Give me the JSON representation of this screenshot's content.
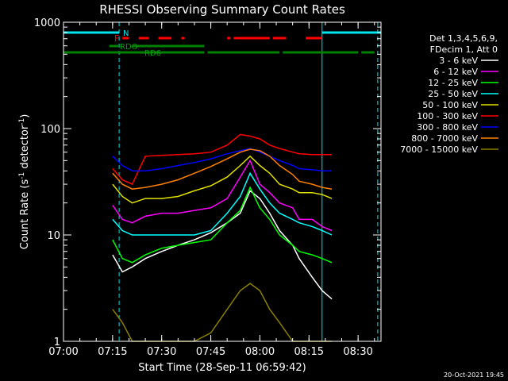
{
  "chart_data": {
    "type": "line",
    "title": "RHESSI Observing Summary Count Rates",
    "xlabel": "Start Time (28-Sep-11 06:59:42)",
    "ylabel_prefix": "Count Rate (s",
    "ylabel_sup1": "-1",
    "ylabel_mid": " detector",
    "ylabel_sup2": "-1",
    "ylabel_suffix": ")",
    "yscale": "log",
    "ylim": [
      1,
      1000
    ],
    "xlim": [
      "07:00",
      "08:37"
    ],
    "x_ticks": [
      "07:00",
      "07:15",
      "07:30",
      "07:45",
      "08:00",
      "08:15",
      "08:30"
    ],
    "y_ticks": [
      "1",
      "10",
      "100",
      "1000"
    ],
    "timestamp": "20-Oct-2021 19:45",
    "legend_header": [
      "Det 1,3,4,5,6,9,",
      "FDecim 1, Att 0"
    ],
    "flag_labels": {
      "night": "N",
      "flare": "F",
      "saa_rd0": "RDO",
      "saa_rd6": "RD6"
    },
    "night_times": [
      "07:00",
      "07:17",
      "08:19",
      "08:36"
    ],
    "flags": {
      "night": {
        "color": "#00e5ee",
        "intervals": [
          [
            "07:00",
            "07:17"
          ],
          [
            "08:19",
            "08:37"
          ]
        ]
      },
      "flare": {
        "color": "#ff0000",
        "intervals": [
          [
            "07:18",
            "07:20"
          ],
          [
            "07:23",
            "07:26"
          ],
          [
            "07:29",
            "07:33"
          ],
          [
            "07:36",
            "07:37"
          ],
          [
            "07:50",
            "07:51"
          ],
          [
            "07:52",
            "08:03"
          ],
          [
            "08:04",
            "08:08"
          ],
          [
            "08:14",
            "08:19"
          ]
        ]
      },
      "rd0": {
        "color": "#008000",
        "intervals": [
          [
            "07:14",
            "07:17"
          ],
          [
            "07:21",
            "07:43"
          ]
        ]
      },
      "rd6": {
        "color": "#008000",
        "intervals": [
          [
            "07:00",
            "07:43"
          ],
          [
            "07:44",
            "08:06"
          ],
          [
            "08:07",
            "08:30"
          ],
          [
            "08:31",
            "08:35"
          ]
        ]
      }
    },
    "series": [
      {
        "name": "3 - 6 keV",
        "color": "#ffffff",
        "x": [
          "07:15",
          "07:18",
          "07:21",
          "07:25",
          "07:30",
          "07:35",
          "07:40",
          "07:45",
          "07:50",
          "07:54",
          "07:57",
          "08:00",
          "08:03",
          "08:06",
          "08:10",
          "08:12",
          "08:16",
          "08:19",
          "08:22"
        ],
        "y": [
          6.5,
          4.5,
          5.0,
          6.0,
          7.0,
          8.0,
          9.0,
          10.5,
          13.0,
          16.0,
          26.0,
          22.0,
          16.0,
          11.0,
          8.0,
          6.0,
          4.0,
          3.0,
          2.5
        ]
      },
      {
        "name": "6 - 12 keV",
        "color": "#ff00ff",
        "x": [
          "07:15",
          "07:18",
          "07:21",
          "07:25",
          "07:30",
          "07:35",
          "07:40",
          "07:45",
          "07:50",
          "07:54",
          "07:57",
          "08:00",
          "08:03",
          "08:06",
          "08:10",
          "08:12",
          "08:16",
          "08:19",
          "08:22"
        ],
        "y": [
          19.0,
          14.0,
          13.0,
          15.0,
          16.0,
          16.0,
          17.0,
          18.0,
          22.0,
          35.0,
          50.0,
          30.0,
          25.0,
          20.0,
          18.0,
          14.0,
          14.0,
          12.0,
          11.0
        ]
      },
      {
        "name": "12 - 25 keV",
        "color": "#00ff00",
        "x": [
          "07:15",
          "07:18",
          "07:21",
          "07:25",
          "07:30",
          "07:35",
          "07:40",
          "07:45",
          "07:50",
          "07:54",
          "07:57",
          "08:00",
          "08:03",
          "08:06",
          "08:10",
          "08:12",
          "08:16",
          "08:19",
          "08:22"
        ],
        "y": [
          9.0,
          6.0,
          5.5,
          6.5,
          7.5,
          8.0,
          8.5,
          9.0,
          13.0,
          17.0,
          28.0,
          18.0,
          14.0,
          10.0,
          8.0,
          7.0,
          6.5,
          6.0,
          5.5
        ]
      },
      {
        "name": "25 - 50 keV",
        "color": "#00ffff",
        "x": [
          "07:15",
          "07:18",
          "07:21",
          "07:25",
          "07:30",
          "07:35",
          "07:40",
          "07:45",
          "07:50",
          "07:54",
          "07:57",
          "08:00",
          "08:03",
          "08:06",
          "08:10",
          "08:12",
          "08:16",
          "08:19",
          "08:22"
        ],
        "y": [
          14.0,
          11.0,
          10.0,
          10.0,
          10.0,
          10.0,
          10.0,
          11.0,
          16.0,
          23.0,
          38.0,
          27.0,
          20.0,
          16.0,
          14.0,
          13.0,
          12.0,
          11.0,
          10.0
        ]
      },
      {
        "name": "50 - 100 keV",
        "color": "#e0e000",
        "x": [
          "07:15",
          "07:18",
          "07:21",
          "07:25",
          "07:30",
          "07:35",
          "07:40",
          "07:45",
          "07:50",
          "07:54",
          "07:57",
          "08:00",
          "08:03",
          "08:06",
          "08:10",
          "08:12",
          "08:16",
          "08:19",
          "08:22"
        ],
        "y": [
          30.0,
          23.0,
          20.0,
          22.0,
          22.0,
          23.0,
          26.0,
          29.0,
          35.0,
          45.0,
          55.0,
          45.0,
          38.0,
          30.0,
          27.0,
          25.0,
          25.0,
          24.0,
          22.0
        ]
      },
      {
        "name": "100 - 300 keV",
        "color": "#ff0000",
        "x": [
          "07:15",
          "07:18",
          "07:21",
          "07:25",
          "07:30",
          "07:35",
          "07:40",
          "07:45",
          "07:50",
          "07:54",
          "07:57",
          "08:00",
          "08:03",
          "08:06",
          "08:10",
          "08:12",
          "08:16",
          "08:19",
          "08:22"
        ],
        "y": [
          42.0,
          33.0,
          30.0,
          55.0,
          56.0,
          57.0,
          58.0,
          60.0,
          70.0,
          88.0,
          85.0,
          80.0,
          70.0,
          65.0,
          60.0,
          58.0,
          57.0,
          57.0,
          57.0
        ]
      },
      {
        "name": "300 - 800 keV",
        "color": "#0000ff",
        "x": [
          "07:15",
          "07:18",
          "07:21",
          "07:25",
          "07:30",
          "07:35",
          "07:40",
          "07:45",
          "07:50",
          "07:54",
          "07:57",
          "08:00",
          "08:03",
          "08:06",
          "08:10",
          "08:12",
          "08:16",
          "08:19",
          "08:22"
        ],
        "y": [
          55.0,
          45.0,
          40.0,
          40.0,
          42.0,
          45.0,
          48.0,
          52.0,
          58.0,
          62.0,
          65.0,
          60.0,
          55.0,
          50.0,
          45.0,
          42.0,
          41.0,
          40.0,
          40.0
        ]
      },
      {
        "name": "800 - 7000 keV",
        "color": "#ff8000",
        "x": [
          "07:15",
          "07:18",
          "07:21",
          "07:25",
          "07:30",
          "07:35",
          "07:40",
          "07:45",
          "07:50",
          "07:54",
          "07:57",
          "08:00",
          "08:03",
          "08:06",
          "08:10",
          "08:12",
          "08:16",
          "08:19",
          "08:22"
        ],
        "y": [
          38.0,
          30.0,
          27.0,
          28.0,
          30.0,
          33.0,
          38.0,
          44.0,
          52.0,
          60.0,
          64.0,
          62.0,
          55.0,
          45.0,
          37.0,
          32.0,
          30.0,
          28.0,
          27.0
        ]
      },
      {
        "name": "7000 - 15000 keV",
        "color": "#8b8000",
        "x": [
          "07:15",
          "07:18",
          "07:21",
          "07:25",
          "07:30",
          "07:35",
          "07:40",
          "07:45",
          "07:50",
          "07:54",
          "07:57",
          "08:00",
          "08:03",
          "08:06",
          "08:10",
          "08:12",
          "08:16",
          "08:19",
          "08:22"
        ],
        "y": [
          2.0,
          1.5,
          1.0,
          1.0,
          1.0,
          1.0,
          1.0,
          1.2,
          2.0,
          3.0,
          3.5,
          3.0,
          2.0,
          1.5,
          1.0,
          1.0,
          1.0,
          1.0,
          1.0
        ]
      }
    ]
  }
}
